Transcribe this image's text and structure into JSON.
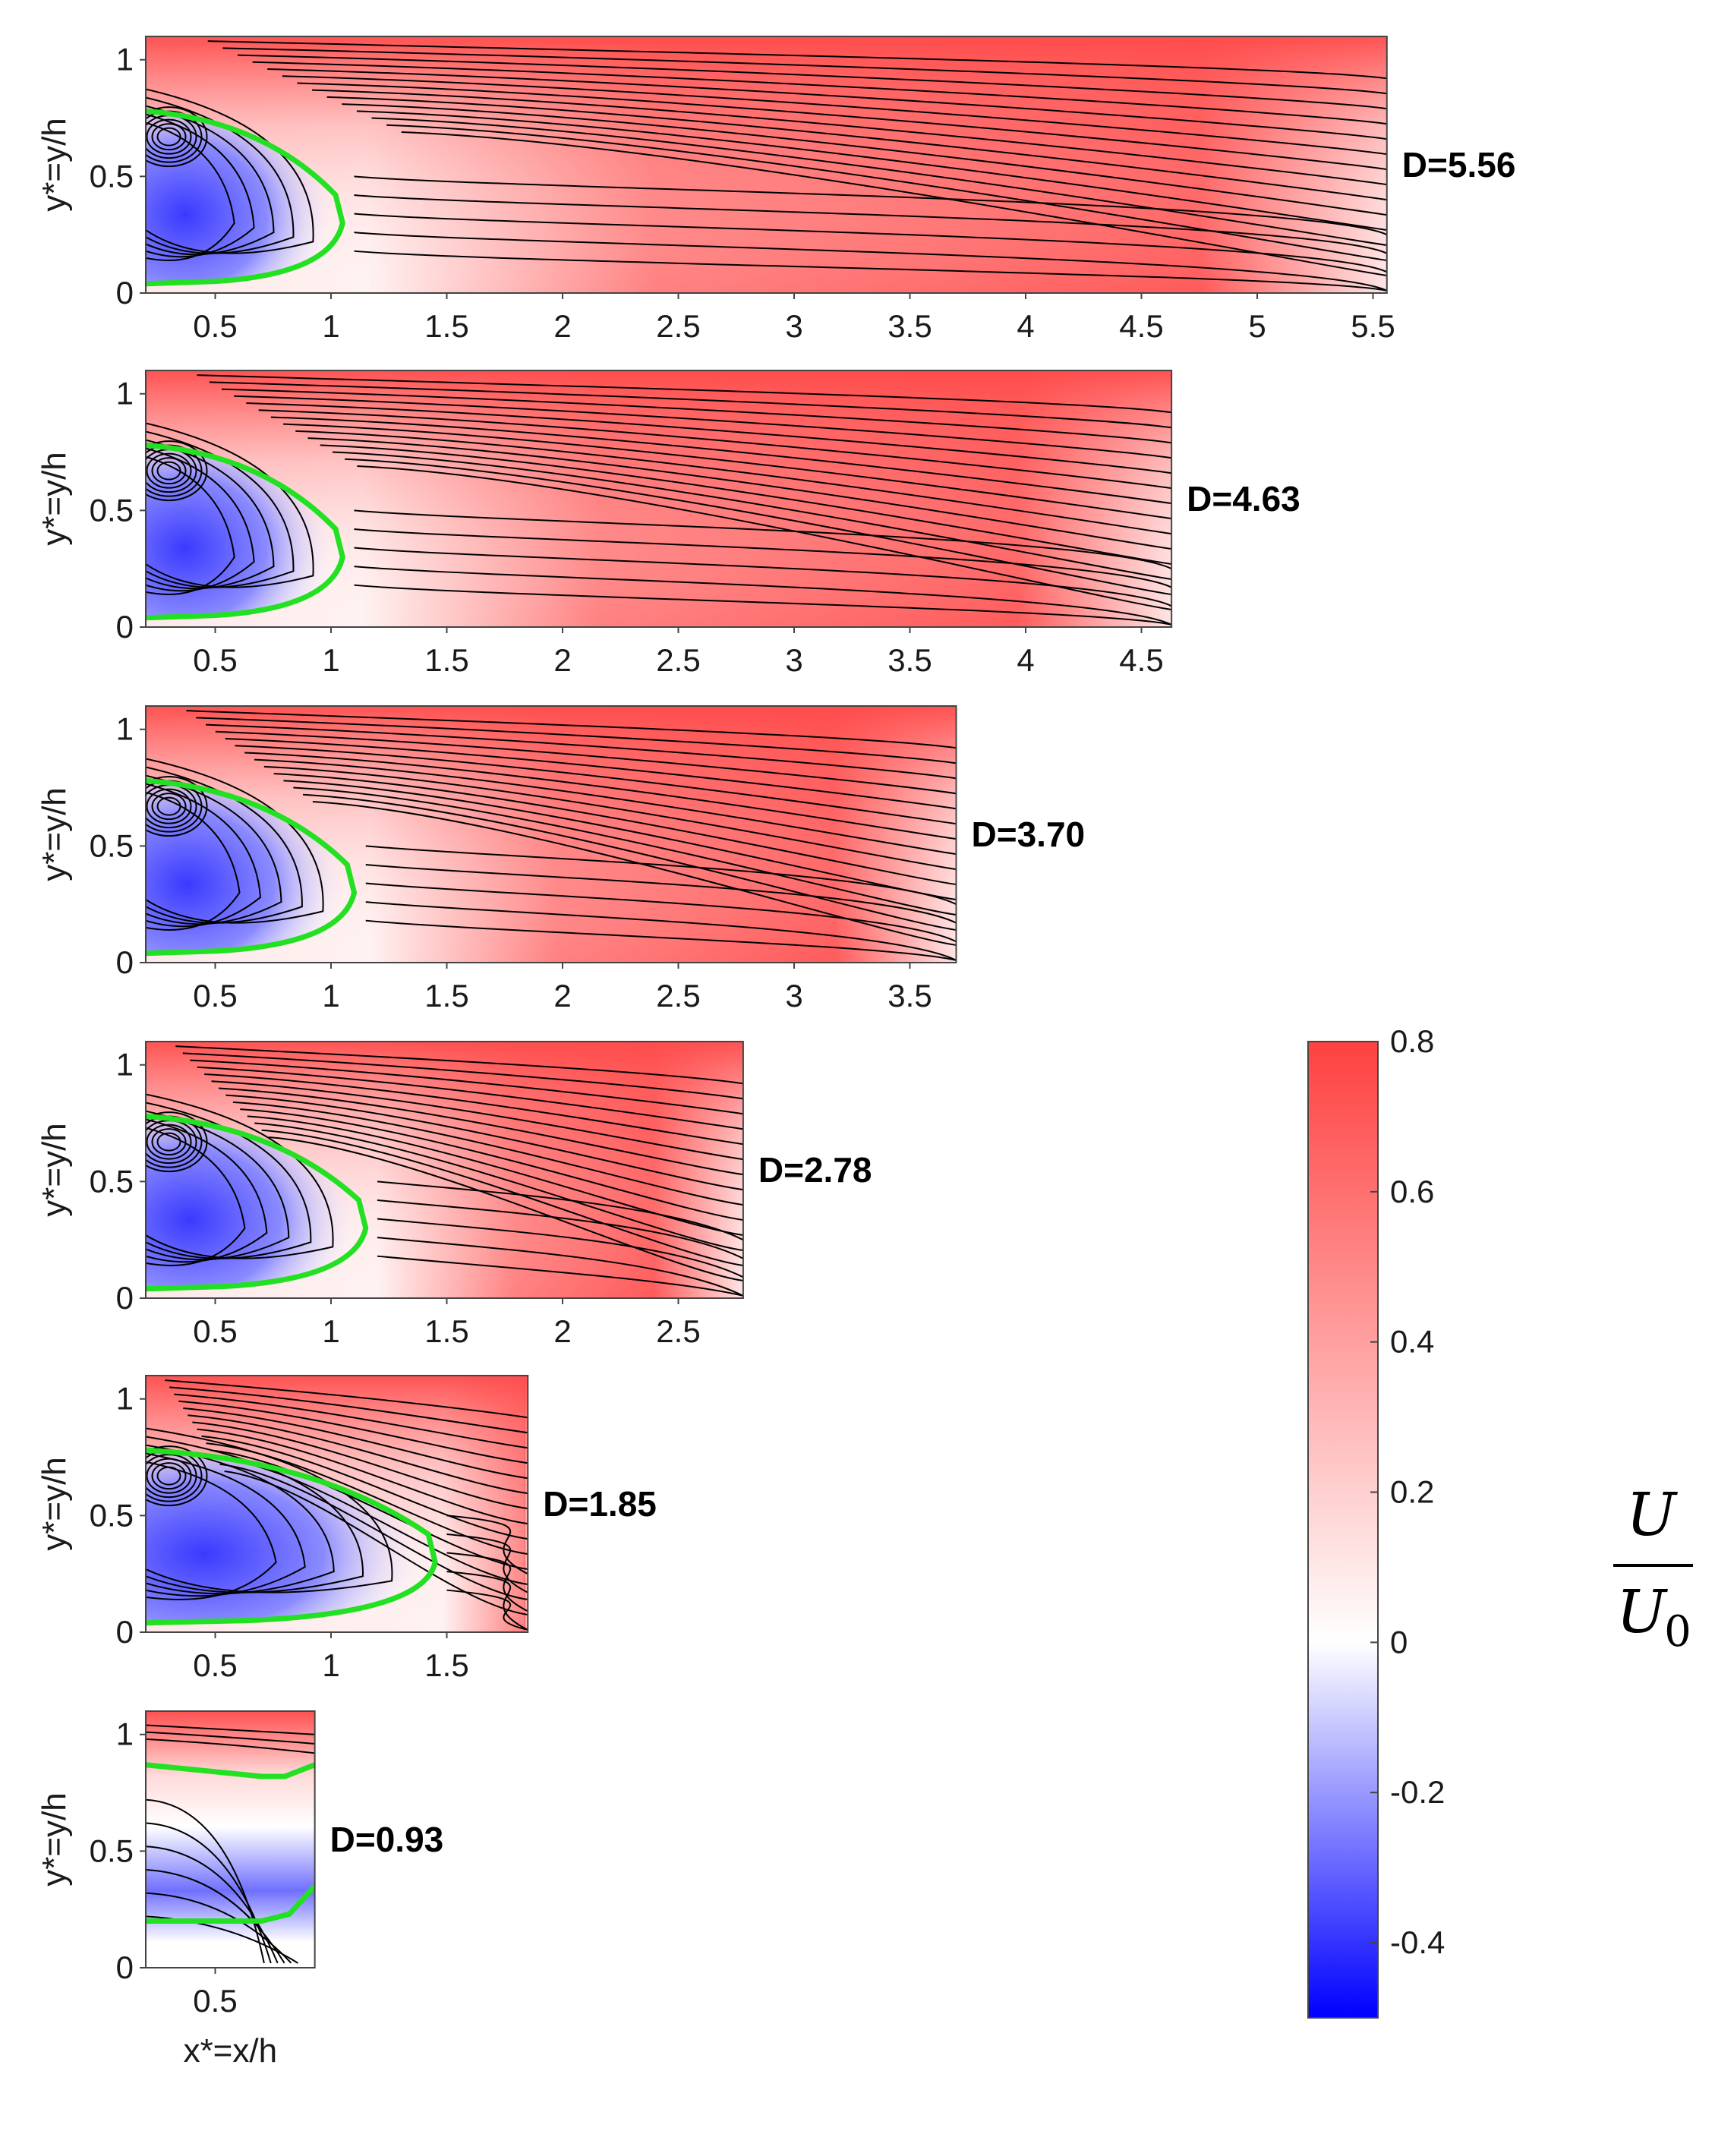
{
  "chart_data": {
    "type": "heatmap",
    "description_label": "U/U0 velocity contour with streamlines",
    "panels": [
      {
        "label": "D=5.56",
        "xlim": [
          0.2,
          5.56
        ],
        "ylim": [
          0,
          1.1
        ],
        "reverse_xlim": 1.05,
        "xticks": [
          {
            "v": 0.5,
            "t": "0.5"
          },
          {
            "v": 1,
            "t": "1"
          },
          {
            "v": 1.5,
            "t": "1.5"
          },
          {
            "v": 2,
            "t": "2"
          },
          {
            "v": 2.5,
            "t": "2.5"
          },
          {
            "v": 3,
            "t": "3"
          },
          {
            "v": 3.5,
            "t": "3.5"
          },
          {
            "v": 4,
            "t": "4"
          },
          {
            "v": 4.5,
            "t": "4.5"
          },
          {
            "v": 5,
            "t": "5"
          },
          {
            "v": 5.5,
            "t": "5.5"
          }
        ],
        "yticks": [
          {
            "v": 0,
            "t": "0"
          },
          {
            "v": 0.5,
            "t": "0.5"
          },
          {
            "v": 1,
            "t": "1"
          }
        ],
        "ylabel": "y*=y/h",
        "xlabel": ""
      },
      {
        "label": "D=4.63",
        "xlim": [
          0.2,
          4.63
        ],
        "ylim": [
          0,
          1.1
        ],
        "reverse_xlim": 1.05,
        "xticks": [
          {
            "v": 0.5,
            "t": "0.5"
          },
          {
            "v": 1,
            "t": "1"
          },
          {
            "v": 1.5,
            "t": "1.5"
          },
          {
            "v": 2,
            "t": "2"
          },
          {
            "v": 2.5,
            "t": "2.5"
          },
          {
            "v": 3,
            "t": "3"
          },
          {
            "v": 3.5,
            "t": "3.5"
          },
          {
            "v": 4,
            "t": "4"
          },
          {
            "v": 4.5,
            "t": "4.5"
          }
        ],
        "yticks": [
          {
            "v": 0,
            "t": "0"
          },
          {
            "v": 0.5,
            "t": "0.5"
          },
          {
            "v": 1,
            "t": "1"
          }
        ],
        "ylabel": "y*=y/h",
        "xlabel": ""
      },
      {
        "label": "D=3.70",
        "xlim": [
          0.2,
          3.7
        ],
        "ylim": [
          0,
          1.1
        ],
        "reverse_xlim": 1.1,
        "xticks": [
          {
            "v": 0.5,
            "t": "0.5"
          },
          {
            "v": 1,
            "t": "1"
          },
          {
            "v": 1.5,
            "t": "1.5"
          },
          {
            "v": 2,
            "t": "2"
          },
          {
            "v": 2.5,
            "t": "2.5"
          },
          {
            "v": 3,
            "t": "3"
          },
          {
            "v": 3.5,
            "t": "3.5"
          }
        ],
        "yticks": [
          {
            "v": 0,
            "t": "0"
          },
          {
            "v": 0.5,
            "t": "0.5"
          },
          {
            "v": 1,
            "t": "1"
          }
        ],
        "ylabel": "y*=y/h",
        "xlabel": ""
      },
      {
        "label": "D=2.78",
        "xlim": [
          0.2,
          2.78
        ],
        "ylim": [
          0,
          1.1
        ],
        "reverse_xlim": 1.15,
        "xticks": [
          {
            "v": 0.5,
            "t": "0.5"
          },
          {
            "v": 1,
            "t": "1"
          },
          {
            "v": 1.5,
            "t": "1.5"
          },
          {
            "v": 2,
            "t": "2"
          },
          {
            "v": 2.5,
            "t": "2.5"
          }
        ],
        "yticks": [
          {
            "v": 0,
            "t": "0"
          },
          {
            "v": 0.5,
            "t": "0.5"
          },
          {
            "v": 1,
            "t": "1"
          }
        ],
        "ylabel": "y*=y/h",
        "xlabel": ""
      },
      {
        "label": "D=1.85",
        "xlim": [
          0.2,
          1.85
        ],
        "ylim": [
          0,
          1.1
        ],
        "reverse_xlim": 1.45,
        "xticks": [
          {
            "v": 0.5,
            "t": "0.5"
          },
          {
            "v": 1,
            "t": "1"
          },
          {
            "v": 1.5,
            "t": "1.5"
          }
        ],
        "yticks": [
          {
            "v": 0,
            "t": "0"
          },
          {
            "v": 0.5,
            "t": "0.5"
          },
          {
            "v": 1,
            "t": "1"
          }
        ],
        "ylabel": "y*=y/h",
        "xlabel": ""
      },
      {
        "label": "D=0.93",
        "xlim": [
          0.2,
          0.93
        ],
        "ylim": [
          0,
          1.1
        ],
        "reverse_xlim": 0.93,
        "xticks": [
          {
            "v": 0.5,
            "t": "0.5"
          }
        ],
        "yticks": [
          {
            "v": 0,
            "t": "0"
          },
          {
            "v": 0.5,
            "t": "0.5"
          },
          {
            "v": 1,
            "t": "1"
          }
        ],
        "ylabel": "y*=y/h",
        "xlabel": "x*=x/h"
      }
    ],
    "colorbar": {
      "range": [
        -0.5,
        0.8
      ],
      "ticks": [
        {
          "v": 0.8,
          "t": "0.8"
        },
        {
          "v": 0.6,
          "t": "0.6"
        },
        {
          "v": 0.4,
          "t": "0.4"
        },
        {
          "v": 0.2,
          "t": "0.2"
        },
        {
          "v": 0,
          "t": "0"
        },
        {
          "v": -0.2,
          "t": "-0.2"
        },
        {
          "v": -0.4,
          "t": "-0.4"
        }
      ],
      "colors": {
        "negative": "#0000ff",
        "zero": "#ffffff",
        "positive": "#ff4040"
      },
      "label_numerator": "U",
      "label_denominator": "U",
      "label_subscript": "0"
    },
    "separation_line_color": "#22e022",
    "streamline_color": "#000000"
  }
}
